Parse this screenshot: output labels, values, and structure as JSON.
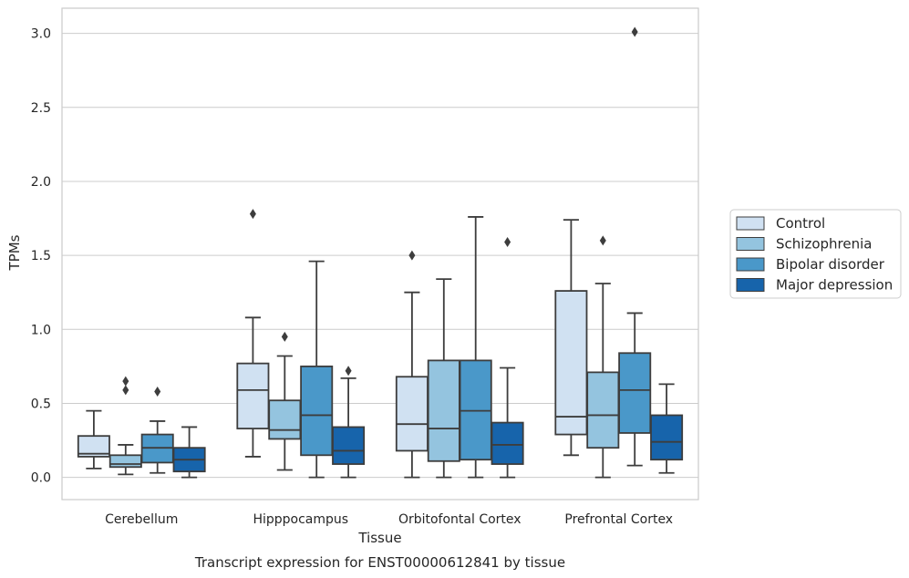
{
  "chart_data": {
    "type": "box",
    "title": "",
    "caption": "Transcript expression for ENST00000612841 by tissue",
    "xlabel": "Tissue",
    "ylabel": "TPMs",
    "ylim": [
      -0.15,
      3.17
    ],
    "yticks": [
      "0.0",
      "0.5",
      "1.0",
      "1.5",
      "2.0",
      "2.5",
      "3.0"
    ],
    "grid": "horizontal",
    "legend_position": "right",
    "categories": [
      "Cerebellum",
      "Hipppocampus",
      "Orbitofontal Cortex",
      "Prefrontal Cortex"
    ],
    "series": [
      {
        "name": "Control",
        "color": "#d0e1f2",
        "boxes": [
          {
            "whislo": 0.06,
            "q1": 0.14,
            "med": 0.16,
            "q3": 0.28,
            "whishi": 0.45,
            "fliers": []
          },
          {
            "whislo": 0.14,
            "q1": 0.33,
            "med": 0.59,
            "q3": 0.77,
            "whishi": 1.08,
            "fliers": [
              1.78
            ]
          },
          {
            "whislo": 0.0,
            "q1": 0.18,
            "med": 0.36,
            "q3": 0.68,
            "whishi": 1.25,
            "fliers": [
              1.5
            ]
          },
          {
            "whislo": 0.15,
            "q1": 0.29,
            "med": 0.41,
            "q3": 1.26,
            "whishi": 1.74,
            "fliers": []
          }
        ]
      },
      {
        "name": "Schizophrenia",
        "color": "#94c4df",
        "boxes": [
          {
            "whislo": 0.02,
            "q1": 0.07,
            "med": 0.09,
            "q3": 0.15,
            "whishi": 0.22,
            "fliers": [
              0.59,
              0.65
            ]
          },
          {
            "whislo": 0.05,
            "q1": 0.26,
            "med": 0.32,
            "q3": 0.52,
            "whishi": 0.82,
            "fliers": [
              0.95
            ]
          },
          {
            "whislo": 0.0,
            "q1": 0.11,
            "med": 0.33,
            "q3": 0.79,
            "whishi": 1.34,
            "fliers": []
          },
          {
            "whislo": 0.0,
            "q1": 0.2,
            "med": 0.42,
            "q3": 0.71,
            "whishi": 1.31,
            "fliers": [
              1.6
            ]
          }
        ]
      },
      {
        "name": "Bipolar disorder",
        "color": "#4a98c9",
        "boxes": [
          {
            "whislo": 0.03,
            "q1": 0.1,
            "med": 0.2,
            "q3": 0.29,
            "whishi": 0.38,
            "fliers": [
              0.58
            ]
          },
          {
            "whislo": 0.0,
            "q1": 0.15,
            "med": 0.42,
            "q3": 0.75,
            "whishi": 1.46,
            "fliers": []
          },
          {
            "whislo": 0.0,
            "q1": 0.12,
            "med": 0.45,
            "q3": 0.79,
            "whishi": 1.76,
            "fliers": []
          },
          {
            "whislo": 0.08,
            "q1": 0.3,
            "med": 0.59,
            "q3": 0.84,
            "whishi": 1.11,
            "fliers": [
              3.01
            ]
          }
        ]
      },
      {
        "name": "Major depression",
        "color": "#1764ab",
        "boxes": [
          {
            "whislo": 0.0,
            "q1": 0.04,
            "med": 0.12,
            "q3": 0.2,
            "whishi": 0.34,
            "fliers": []
          },
          {
            "whislo": 0.0,
            "q1": 0.09,
            "med": 0.18,
            "q3": 0.34,
            "whishi": 0.67,
            "fliers": [
              0.72
            ]
          },
          {
            "whislo": 0.0,
            "q1": 0.09,
            "med": 0.22,
            "q3": 0.37,
            "whishi": 0.74,
            "fliers": [
              1.59
            ]
          },
          {
            "whislo": 0.03,
            "q1": 0.12,
            "med": 0.24,
            "q3": 0.42,
            "whishi": 0.63,
            "fliers": []
          }
        ]
      }
    ]
  }
}
